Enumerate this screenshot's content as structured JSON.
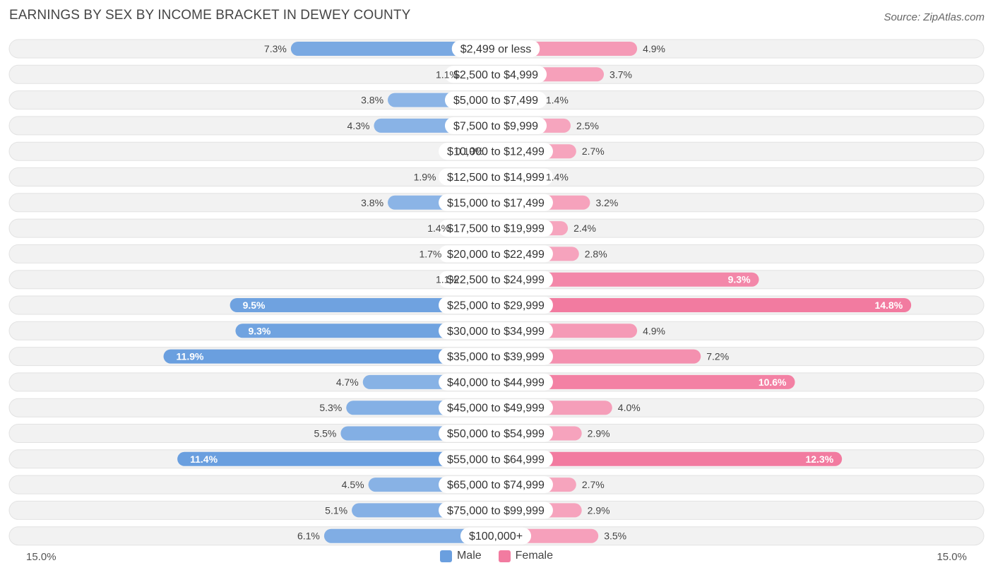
{
  "title": "EARNINGS BY SEX BY INCOME BRACKET IN DEWEY COUNTY",
  "source": "Source: ZipAtlas.com",
  "colors": {
    "male": "#6a9fdf",
    "female": "#f27ba0",
    "track": "#f1f1f1"
  },
  "chart_data": {
    "type": "bar",
    "orientation": "horizontal-diverging",
    "title": "EARNINGS BY SEX BY INCOME BRACKET IN DEWEY COUNTY",
    "categories": [
      "$2,499 or less",
      "$2,500 to $4,999",
      "$5,000 to $7,499",
      "$7,500 to $9,999",
      "$10,000 to $12,499",
      "$12,500 to $14,999",
      "$15,000 to $17,499",
      "$17,500 to $19,999",
      "$20,000 to $22,499",
      "$22,500 to $24,999",
      "$25,000 to $29,999",
      "$30,000 to $34,999",
      "$35,000 to $39,999",
      "$40,000 to $44,999",
      "$45,000 to $49,999",
      "$50,000 to $54,999",
      "$55,000 to $64,999",
      "$65,000 to $74,999",
      "$75,000 to $99,999",
      "$100,000+"
    ],
    "series": [
      {
        "name": "Male",
        "values": [
          7.3,
          1.1,
          3.8,
          4.3,
          0.19,
          1.9,
          3.8,
          1.4,
          1.7,
          1.1,
          9.5,
          9.3,
          11.9,
          4.7,
          5.3,
          5.5,
          11.4,
          4.5,
          5.1,
          6.1
        ],
        "labels": [
          "7.3%",
          "1.1%",
          "3.8%",
          "4.3%",
          "0.19%",
          "1.9%",
          "3.8%",
          "1.4%",
          "1.7%",
          "1.1%",
          "9.5%",
          "9.3%",
          "11.9%",
          "4.7%",
          "5.3%",
          "5.5%",
          "11.4%",
          "4.5%",
          "5.1%",
          "6.1%"
        ]
      },
      {
        "name": "Female",
        "values": [
          4.9,
          3.7,
          1.4,
          2.5,
          2.7,
          1.4,
          3.2,
          2.4,
          2.8,
          9.3,
          14.8,
          4.9,
          7.2,
          10.6,
          4.0,
          2.9,
          12.3,
          2.7,
          2.9,
          3.5
        ],
        "labels": [
          "4.9%",
          "3.7%",
          "1.4%",
          "2.5%",
          "2.7%",
          "1.4%",
          "3.2%",
          "2.4%",
          "2.8%",
          "9.3%",
          "14.8%",
          "4.9%",
          "7.2%",
          "10.6%",
          "4.0%",
          "2.9%",
          "12.3%",
          "2.7%",
          "2.9%",
          "3.5%"
        ]
      }
    ],
    "axis_max": 15.0,
    "axis_left_label": "15.0%",
    "axis_right_label": "15.0%",
    "legend": [
      "Male",
      "Female"
    ],
    "legend_position": "bottom-center"
  }
}
